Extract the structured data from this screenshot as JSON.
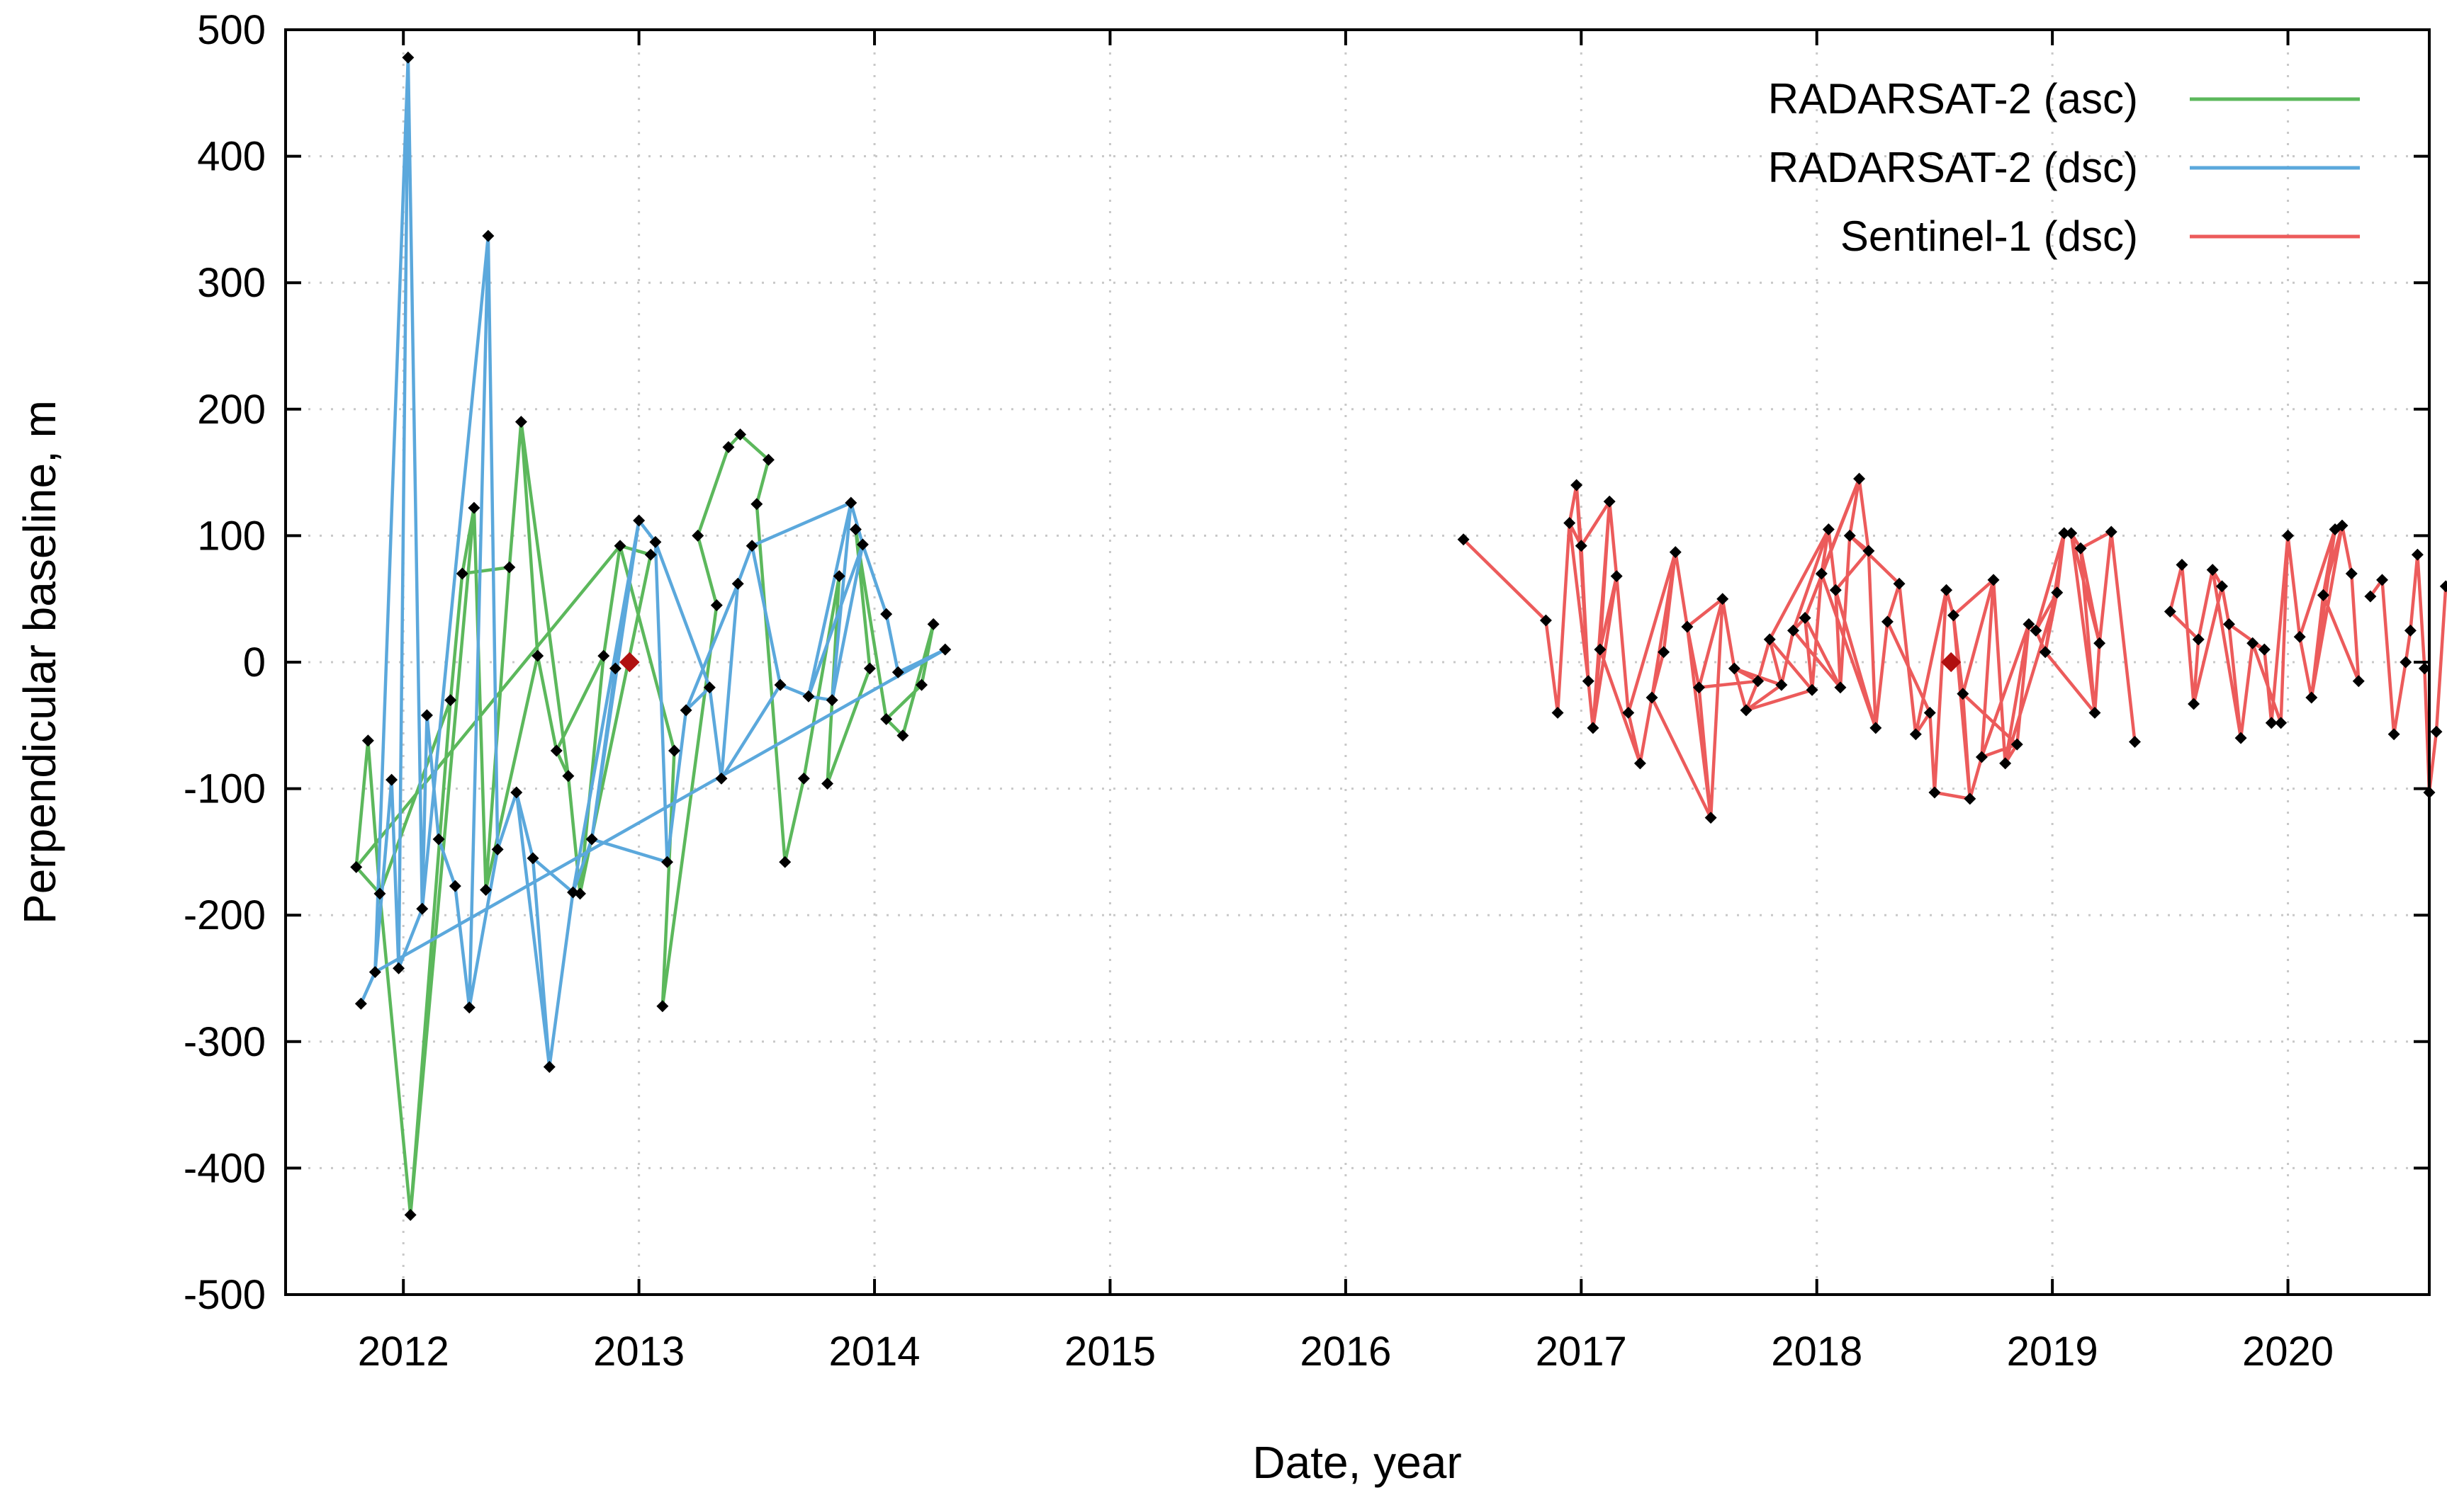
{
  "chart_data": {
    "type": "line",
    "title": "",
    "xlabel": "Date, year",
    "ylabel": "Perpendicular baseline, m",
    "xlim": [
      2011.5,
      2020.6
    ],
    "ylim": [
      -500,
      500
    ],
    "xticks": [
      2012,
      2013,
      2014,
      2015,
      2016,
      2017,
      2018,
      2019,
      2020
    ],
    "yticks": [
      -500,
      -400,
      -300,
      -200,
      -100,
      0,
      100,
      200,
      300,
      400,
      500
    ],
    "grid": true,
    "legend_position": "top-right",
    "series": [
      {
        "name": "RADARSAT-2 (asc)",
        "color": "#5cb85c",
        "reference": [
          2012.96,
          0
        ],
        "points": [
          [
            2011.8,
            -162
          ],
          [
            2011.85,
            -62
          ],
          [
            2011.9,
            -183
          ],
          [
            2012.03,
            -437
          ],
          [
            2012.2,
            -30
          ],
          [
            2012.25,
            70
          ],
          [
            2012.3,
            122
          ],
          [
            2012.35,
            -180
          ],
          [
            2012.45,
            75
          ],
          [
            2012.5,
            190
          ],
          [
            2012.57,
            5
          ],
          [
            2012.65,
            -70
          ],
          [
            2012.7,
            -90
          ],
          [
            2012.75,
            -183
          ],
          [
            2012.85,
            5
          ],
          [
            2012.92,
            92
          ],
          [
            2013.05,
            85
          ],
          [
            2013.1,
            -272
          ],
          [
            2013.15,
            -70
          ],
          [
            2013.25,
            100
          ],
          [
            2013.33,
            45
          ],
          [
            2013.38,
            170
          ],
          [
            2013.43,
            180
          ],
          [
            2013.5,
            125
          ],
          [
            2013.55,
            160
          ],
          [
            2013.62,
            -158
          ],
          [
            2013.7,
            -92
          ],
          [
            2013.8,
            -96
          ],
          [
            2013.85,
            68
          ],
          [
            2013.92,
            105
          ],
          [
            2013.98,
            -5
          ],
          [
            2014.05,
            -45
          ],
          [
            2014.12,
            -58
          ],
          [
            2014.2,
            -18
          ],
          [
            2014.25,
            30
          ]
        ],
        "order": [
          0,
          1,
          2,
          3,
          4,
          5,
          6,
          7,
          8,
          9,
          10,
          11,
          12,
          13,
          14,
          15,
          0,
          2,
          4,
          3,
          6,
          5,
          8,
          7,
          10,
          9,
          12,
          11,
          14,
          13,
          16,
          15,
          18,
          17,
          20,
          19,
          21,
          22,
          24,
          23,
          25,
          26,
          28,
          27,
          30,
          29,
          31,
          32,
          34,
          33,
          31,
          29
        ]
      },
      {
        "name": "RADARSAT-2 (dsc)",
        "color": "#5ba8dc",
        "reference": [
          2012.96,
          0
        ],
        "points": [
          [
            2011.82,
            -270
          ],
          [
            2011.88,
            -245
          ],
          [
            2011.95,
            -93
          ],
          [
            2011.98,
            -242
          ],
          [
            2012.02,
            478
          ],
          [
            2012.08,
            -195
          ],
          [
            2012.1,
            -42
          ],
          [
            2012.15,
            -140
          ],
          [
            2012.22,
            -177
          ],
          [
            2012.28,
            -273
          ],
          [
            2012.36,
            337
          ],
          [
            2012.4,
            -148
          ],
          [
            2012.48,
            -103
          ],
          [
            2012.55,
            -155
          ],
          [
            2012.62,
            -320
          ],
          [
            2012.72,
            -182
          ],
          [
            2012.8,
            -140
          ],
          [
            2012.9,
            -5
          ],
          [
            2013.0,
            112
          ],
          [
            2013.07,
            95
          ],
          [
            2013.12,
            -158
          ],
          [
            2013.2,
            -38
          ],
          [
            2013.3,
            -20
          ],
          [
            2013.35,
            -92
          ],
          [
            2013.42,
            62
          ],
          [
            2013.48,
            92
          ],
          [
            2013.6,
            -18
          ],
          [
            2013.72,
            -27
          ],
          [
            2013.82,
            -30
          ],
          [
            2013.9,
            126
          ],
          [
            2013.95,
            93
          ],
          [
            2014.05,
            38
          ],
          [
            2014.1,
            -8
          ],
          [
            2014.3,
            10
          ]
        ],
        "order": [
          0,
          1,
          2,
          3,
          4,
          5,
          6,
          7,
          8,
          9,
          10,
          11,
          12,
          13,
          14,
          15,
          16,
          17,
          18,
          19,
          20,
          21,
          22,
          23,
          24,
          25,
          26,
          27,
          28,
          29,
          30,
          31,
          32,
          33,
          1,
          4,
          3,
          5,
          10,
          9,
          11,
          12,
          14,
          13,
          15,
          18,
          16,
          20,
          19,
          22,
          21,
          24,
          23,
          26,
          25,
          29,
          27,
          30,
          28
        ]
      },
      {
        "name": "Sentinel-1 (dsc)",
        "color": "#ec5b5b",
        "reference": [
          2018.57,
          0
        ],
        "points": [
          [
            2016.5,
            97
          ],
          [
            2016.85,
            33
          ],
          [
            2016.9,
            -40
          ],
          [
            2016.95,
            110
          ],
          [
            2016.98,
            140
          ],
          [
            2017.0,
            92
          ],
          [
            2017.03,
            -15
          ],
          [
            2017.05,
            -52
          ],
          [
            2017.08,
            10
          ],
          [
            2017.12,
            127
          ],
          [
            2017.15,
            68
          ],
          [
            2017.2,
            -40
          ],
          [
            2017.25,
            -80
          ],
          [
            2017.3,
            -28
          ],
          [
            2017.35,
            8
          ],
          [
            2017.4,
            87
          ],
          [
            2017.45,
            28
          ],
          [
            2017.5,
            -20
          ],
          [
            2017.55,
            -123
          ],
          [
            2017.6,
            50
          ],
          [
            2017.65,
            -5
          ],
          [
            2017.7,
            -38
          ],
          [
            2017.75,
            -15
          ],
          [
            2017.8,
            18
          ],
          [
            2017.85,
            -18
          ],
          [
            2017.9,
            25
          ],
          [
            2017.95,
            35
          ],
          [
            2017.98,
            -22
          ],
          [
            2018.02,
            70
          ],
          [
            2018.05,
            105
          ],
          [
            2018.08,
            57
          ],
          [
            2018.1,
            -20
          ],
          [
            2018.14,
            100
          ],
          [
            2018.18,
            145
          ],
          [
            2018.22,
            88
          ],
          [
            2018.25,
            -52
          ],
          [
            2018.3,
            32
          ],
          [
            2018.35,
            62
          ],
          [
            2018.42,
            -57
          ],
          [
            2018.48,
            -40
          ],
          [
            2018.5,
            -103
          ],
          [
            2018.55,
            57
          ],
          [
            2018.58,
            37
          ],
          [
            2018.62,
            -25
          ],
          [
            2018.65,
            -108
          ],
          [
            2018.7,
            -75
          ],
          [
            2018.75,
            65
          ],
          [
            2018.8,
            -80
          ],
          [
            2018.85,
            -65
          ],
          [
            2018.9,
            30
          ],
          [
            2018.93,
            25
          ],
          [
            2018.97,
            8
          ],
          [
            2019.02,
            55
          ],
          [
            2019.05,
            102
          ],
          [
            2019.08,
            102
          ],
          [
            2019.12,
            90
          ],
          [
            2019.18,
            -40
          ],
          [
            2019.2,
            15
          ],
          [
            2019.25,
            103
          ],
          [
            2019.35,
            -63
          ],
          [
            2019.5,
            40
          ],
          [
            2019.55,
            77
          ],
          [
            2019.6,
            -33
          ],
          [
            2019.62,
            18
          ],
          [
            2019.68,
            73
          ],
          [
            2019.72,
            60
          ],
          [
            2019.75,
            30
          ],
          [
            2019.8,
            -60
          ],
          [
            2019.85,
            15
          ],
          [
            2019.9,
            10
          ],
          [
            2019.93,
            -48
          ],
          [
            2019.97,
            -48
          ],
          [
            2020.0,
            100
          ],
          [
            2020.05,
            20
          ],
          [
            2020.1,
            -28
          ],
          [
            2020.15,
            53
          ],
          [
            2020.2,
            105
          ],
          [
            2020.23,
            108
          ],
          [
            2020.27,
            70
          ],
          [
            2020.3,
            -15
          ],
          [
            2020.35,
            52
          ],
          [
            2020.4,
            65
          ],
          [
            2020.45,
            -57
          ],
          [
            2020.5,
            0
          ],
          [
            2020.52,
            25
          ],
          [
            2020.55,
            85
          ],
          [
            2020.58,
            -5
          ],
          [
            2020.6,
            -103
          ],
          [
            2020.63,
            -55
          ],
          [
            2020.67,
            60
          ]
        ],
        "order": [
          0,
          1,
          2,
          3,
          4,
          5,
          6,
          7,
          8,
          9,
          10,
          11,
          12,
          13,
          14,
          15,
          16,
          17,
          18,
          19,
          20,
          21,
          22,
          23,
          24,
          25,
          26,
          27,
          28,
          29,
          30,
          31,
          32,
          33,
          34,
          35,
          36,
          37,
          38,
          39,
          40,
          41,
          42,
          43,
          44,
          45,
          46,
          47,
          48,
          49,
          50,
          51,
          52,
          53,
          54,
          55,
          56,
          57,
          58,
          59,
          -1,
          60,
          61,
          62,
          63,
          64,
          65,
          66,
          67,
          68,
          69,
          70,
          71,
          72,
          73,
          74,
          75,
          76,
          77,
          78,
          79,
          -1,
          80,
          81,
          82,
          83,
          84,
          85,
          86,
          87,
          88,
          89,
          -1,
          4,
          6,
          3,
          5,
          9,
          7,
          10,
          8,
          12,
          11,
          15,
          13,
          18,
          16,
          19,
          17,
          22,
          20,
          24,
          21,
          27,
          23,
          29,
          25,
          31,
          26,
          33,
          28,
          35,
          30,
          34,
          32,
          37,
          36,
          39,
          38,
          41,
          40,
          44,
          42,
          46,
          43,
          48,
          45,
          49,
          47,
          52,
          50,
          53,
          51,
          56,
          54,
          57,
          55,
          58,
          -1,
          61,
          60,
          63,
          62,
          65,
          64,
          67,
          66,
          69,
          68,
          71,
          70,
          72,
          73,
          76,
          74,
          77,
          75,
          79,
          78
        ]
      }
    ]
  }
}
